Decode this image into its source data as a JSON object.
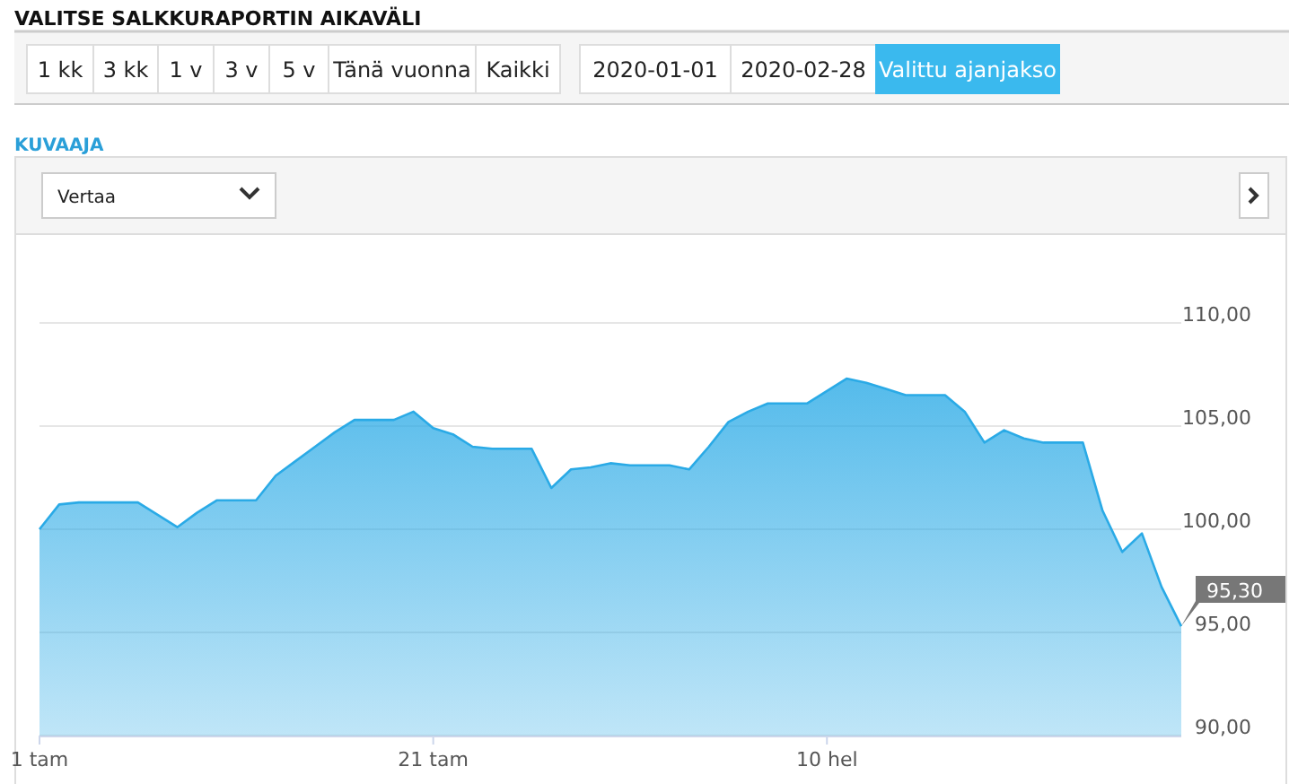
{
  "chart_data": {
    "type": "area",
    "title": "KUVAAJA",
    "annotations": [
      "VALITSE SALKKURAPORTIN AIKAVÄLI",
      "1 kk",
      "3 kk",
      "1 v",
      "3 v",
      "5 v",
      "Tänä vuonna",
      "Kaikki",
      "2020-01-01",
      "2020-02-28",
      "Valittu ajanjakso",
      "Vertaa",
      {
        "text": "95,30",
        "x": "2020-02-28",
        "y": 95.3
      }
    ],
    "x": [
      "2020-01-01",
      "2020-01-02",
      "2020-01-03",
      "2020-01-04",
      "2020-01-05",
      "2020-01-06",
      "2020-01-07",
      "2020-01-08",
      "2020-01-09",
      "2020-01-10",
      "2020-01-11",
      "2020-01-12",
      "2020-01-13",
      "2020-01-14",
      "2020-01-15",
      "2020-01-16",
      "2020-01-17",
      "2020-01-18",
      "2020-01-19",
      "2020-01-20",
      "2020-01-21",
      "2020-01-22",
      "2020-01-23",
      "2020-01-24",
      "2020-01-25",
      "2020-01-26",
      "2020-01-27",
      "2020-01-28",
      "2020-01-29",
      "2020-01-30",
      "2020-01-31",
      "2020-02-01",
      "2020-02-02",
      "2020-02-03",
      "2020-02-04",
      "2020-02-05",
      "2020-02-06",
      "2020-02-07",
      "2020-02-08",
      "2020-02-09",
      "2020-02-10",
      "2020-02-11",
      "2020-02-12",
      "2020-02-13",
      "2020-02-14",
      "2020-02-15",
      "2020-02-16",
      "2020-02-17",
      "2020-02-18",
      "2020-02-19",
      "2020-02-20",
      "2020-02-21",
      "2020-02-22",
      "2020-02-23",
      "2020-02-24",
      "2020-02-25",
      "2020-02-26",
      "2020-02-27",
      "2020-02-28"
    ],
    "series": [
      {
        "color": "#2aaae6",
        "values": [
          100.0,
          101.2,
          101.3,
          101.3,
          101.3,
          101.3,
          100.7,
          100.1,
          100.8,
          101.4,
          101.4,
          101.4,
          102.6,
          103.3,
          104.0,
          104.7,
          105.3,
          105.3,
          105.3,
          105.7,
          104.9,
          104.6,
          104.0,
          103.9,
          103.9,
          103.9,
          102.0,
          102.9,
          103.0,
          103.2,
          103.1,
          103.1,
          103.1,
          102.9,
          104.0,
          105.2,
          105.7,
          106.1,
          106.1,
          106.1,
          106.7,
          107.3,
          107.1,
          106.8,
          106.5,
          106.5,
          106.5,
          105.7,
          104.2,
          104.8,
          104.4,
          104.2,
          104.2,
          104.2,
          100.9,
          98.9,
          99.8,
          97.2,
          95.3
        ]
      }
    ],
    "xlim": [
      "2020-01-01",
      "2020-02-28"
    ],
    "xticks": [
      {
        "value": "2020-01-01",
        "label": "1 tam"
      },
      {
        "value": "2020-01-21",
        "label": "21 tam"
      },
      {
        "value": "2020-02-10",
        "label": "10 hel"
      }
    ],
    "ylim": [
      90,
      110
    ],
    "yticks": [
      {
        "value": 90,
        "label": "90,00"
      },
      {
        "value": 95,
        "label": "95,00"
      },
      {
        "value": 100,
        "label": "100,00"
      },
      {
        "value": 105,
        "label": "105,00"
      },
      {
        "value": 110,
        "label": "110,00"
      }
    ],
    "grid": "y"
  }
}
